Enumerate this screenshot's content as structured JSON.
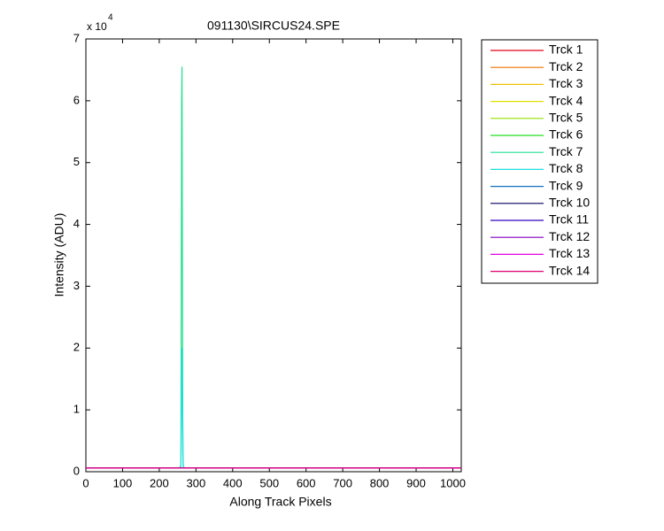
{
  "chart_data": {
    "type": "line",
    "title": "091130\\SIRCUS24.SPE",
    "x_label": "Along Track Pixels",
    "y_label": "Intensity (ADU)",
    "y_multiplier": {
      "base": "x 10",
      "exponent": "4"
    },
    "x": [
      0,
      255,
      259,
      260,
      261,
      262,
      263,
      264,
      265,
      266,
      270,
      1023
    ],
    "series": [
      {
        "name": "Trck 1",
        "color": "#e8001c",
        "values": [
          600,
          600,
          600,
          600,
          600,
          600,
          600,
          600,
          600,
          600,
          600,
          600
        ]
      },
      {
        "name": "Trck 2",
        "color": "#f07000",
        "values": [
          600,
          600,
          600,
          600,
          600,
          600,
          600,
          600,
          600,
          600,
          600,
          600
        ]
      },
      {
        "name": "Trck 3",
        "color": "#f0c000",
        "values": [
          600,
          600,
          600,
          600,
          600,
          600,
          600,
          600,
          600,
          600,
          600,
          600
        ]
      },
      {
        "name": "Trck 4",
        "color": "#e0e000",
        "values": [
          600,
          600,
          600,
          600,
          600,
          600,
          600,
          600,
          600,
          600,
          600,
          600
        ]
      },
      {
        "name": "Trck 5",
        "color": "#90e000",
        "values": [
          600,
          600,
          600,
          600,
          600,
          600,
          600,
          600,
          600,
          600,
          600,
          600
        ]
      },
      {
        "name": "Trck 6",
        "color": "#20e020",
        "values": [
          600,
          600,
          600,
          600,
          600,
          600,
          600,
          600,
          600,
          600,
          600,
          600
        ]
      },
      {
        "name": "Trck 7",
        "color": "#20e090",
        "values": [
          600,
          600,
          1000,
          30000,
          60000,
          65500,
          36000,
          9000,
          1500,
          800,
          600,
          600
        ]
      },
      {
        "name": "Trck 8",
        "color": "#20e0e0",
        "values": [
          600,
          600,
          800,
          9000,
          18000,
          20000,
          10000,
          3000,
          1000,
          700,
          600,
          600
        ]
      },
      {
        "name": "Trck 9",
        "color": "#1070c0",
        "values": [
          600,
          600,
          600,
          600,
          600,
          600,
          600,
          600,
          600,
          600,
          600,
          600
        ]
      },
      {
        "name": "Trck 10",
        "color": "#000060",
        "values": [
          600,
          600,
          600,
          600,
          600,
          600,
          600,
          600,
          600,
          600,
          600,
          600
        ]
      },
      {
        "name": "Trck 11",
        "color": "#3000c0",
        "values": [
          600,
          600,
          600,
          600,
          600,
          600,
          600,
          600,
          600,
          600,
          600,
          600
        ]
      },
      {
        "name": "Trck 12",
        "color": "#8000c0",
        "values": [
          600,
          600,
          600,
          600,
          600,
          600,
          600,
          600,
          600,
          600,
          600,
          600
        ]
      },
      {
        "name": "Trck 13",
        "color": "#e000e0",
        "values": [
          600,
          600,
          600,
          600,
          600,
          600,
          600,
          600,
          600,
          600,
          600,
          600
        ]
      },
      {
        "name": "Trck 14",
        "color": "#e00070",
        "values": [
          600,
          600,
          600,
          600,
          600,
          600,
          600,
          600,
          600,
          600,
          600,
          600
        ]
      }
    ],
    "xlim": [
      0,
      1023
    ],
    "xticks": [
      0,
      100,
      200,
      300,
      400,
      500,
      600,
      700,
      800,
      900,
      1000
    ],
    "ylim": [
      0,
      70000
    ],
    "yticks": [
      {
        "value": 0,
        "label": "0"
      },
      {
        "value": 10000,
        "label": "1"
      },
      {
        "value": 20000,
        "label": "2"
      },
      {
        "value": 30000,
        "label": "3"
      },
      {
        "value": 40000,
        "label": "4"
      },
      {
        "value": 50000,
        "label": "5"
      },
      {
        "value": 60000,
        "label": "6"
      },
      {
        "value": 70000,
        "label": "7"
      }
    ],
    "grid": false,
    "legend": "outside-right"
  }
}
